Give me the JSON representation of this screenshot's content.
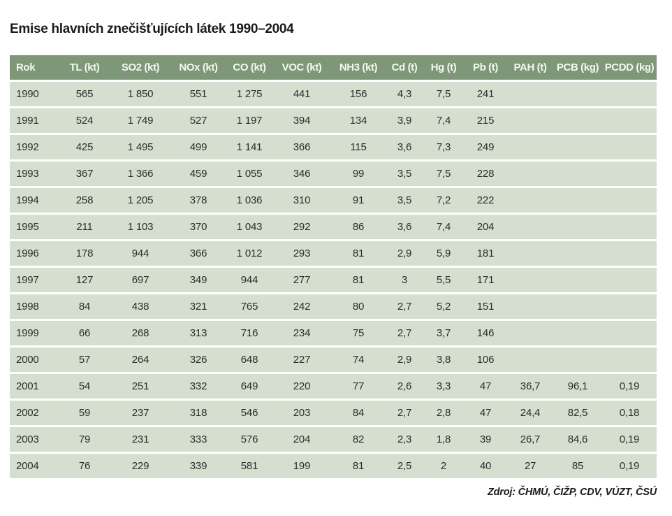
{
  "title": "Emise hlavních znečišťujících látek 1990–2004",
  "source": "Zdroj: ČHMÚ, ČIŽP, CDV, VÚZT, ČSÚ",
  "colors": {
    "header_bg": "#7d9778",
    "row_bg": "#d5dfd0",
    "separator": "#ffffff",
    "header_text": "#f5f7f2",
    "body_text": "#2d2d2b",
    "title_text": "#1a1a18"
  },
  "chart_data": {
    "type": "table",
    "title": "Emise hlavních znečišťujících látek 1990–2004",
    "columns": [
      "Rok",
      "TL (kt)",
      "SO2 (kt)",
      "NOx (kt)",
      "CO (kt)",
      "VOC (kt)",
      "NH3 (kt)",
      "Cd (t)",
      "Hg (t)",
      "Pb (t)",
      "PAH (t)",
      "PCB (kg)",
      "PCDD (kg)"
    ],
    "rows": [
      [
        "1990",
        "565",
        "1 850",
        "551",
        "1 275",
        "441",
        "156",
        "4,3",
        "7,5",
        "241",
        "",
        "",
        ""
      ],
      [
        "1991",
        "524",
        "1 749",
        "527",
        "1 197",
        "394",
        "134",
        "3,9",
        "7,4",
        "215",
        "",
        "",
        ""
      ],
      [
        "1992",
        "425",
        "1 495",
        "499",
        "1 141",
        "366",
        "115",
        "3,6",
        "7,3",
        "249",
        "",
        "",
        ""
      ],
      [
        "1993",
        "367",
        "1 366",
        "459",
        "1 055",
        "346",
        "99",
        "3,5",
        "7,5",
        "228",
        "",
        "",
        ""
      ],
      [
        "1994",
        "258",
        "1 205",
        "378",
        "1 036",
        "310",
        "91",
        "3,5",
        "7,2",
        "222",
        "",
        "",
        ""
      ],
      [
        "1995",
        "211",
        "1 103",
        "370",
        "1 043",
        "292",
        "86",
        "3,6",
        "7,4",
        "204",
        "",
        "",
        ""
      ],
      [
        "1996",
        "178",
        "944",
        "366",
        "1 012",
        "293",
        "81",
        "2,9",
        "5,9",
        "181",
        "",
        "",
        ""
      ],
      [
        "1997",
        "127",
        "697",
        "349",
        "944",
        "277",
        "81",
        "3",
        "5,5",
        "171",
        "",
        "",
        ""
      ],
      [
        "1998",
        "84",
        "438",
        "321",
        "765",
        "242",
        "80",
        "2,7",
        "5,2",
        "151",
        "",
        "",
        ""
      ],
      [
        "1999",
        "66",
        "268",
        "313",
        "716",
        "234",
        "75",
        "2,7",
        "3,7",
        "146",
        "",
        "",
        ""
      ],
      [
        "2000",
        "57",
        "264",
        "326",
        "648",
        "227",
        "74",
        "2,9",
        "3,8",
        "106",
        "",
        "",
        ""
      ],
      [
        "2001",
        "54",
        "251",
        "332",
        "649",
        "220",
        "77",
        "2,6",
        "3,3",
        "47",
        "36,7",
        "96,1",
        "0,19"
      ],
      [
        "2002",
        "59",
        "237",
        "318",
        "546",
        "203",
        "84",
        "2,7",
        "2,8",
        "47",
        "24,4",
        "82,5",
        "0,18"
      ],
      [
        "2003",
        "79",
        "231",
        "333",
        "576",
        "204",
        "82",
        "2,3",
        "1,8",
        "39",
        "26,7",
        "84,6",
        "0,19"
      ],
      [
        "2004",
        "76",
        "229",
        "339",
        "581",
        "199",
        "81",
        "2,5",
        "2",
        "40",
        "27",
        "85",
        "0,19"
      ]
    ]
  }
}
